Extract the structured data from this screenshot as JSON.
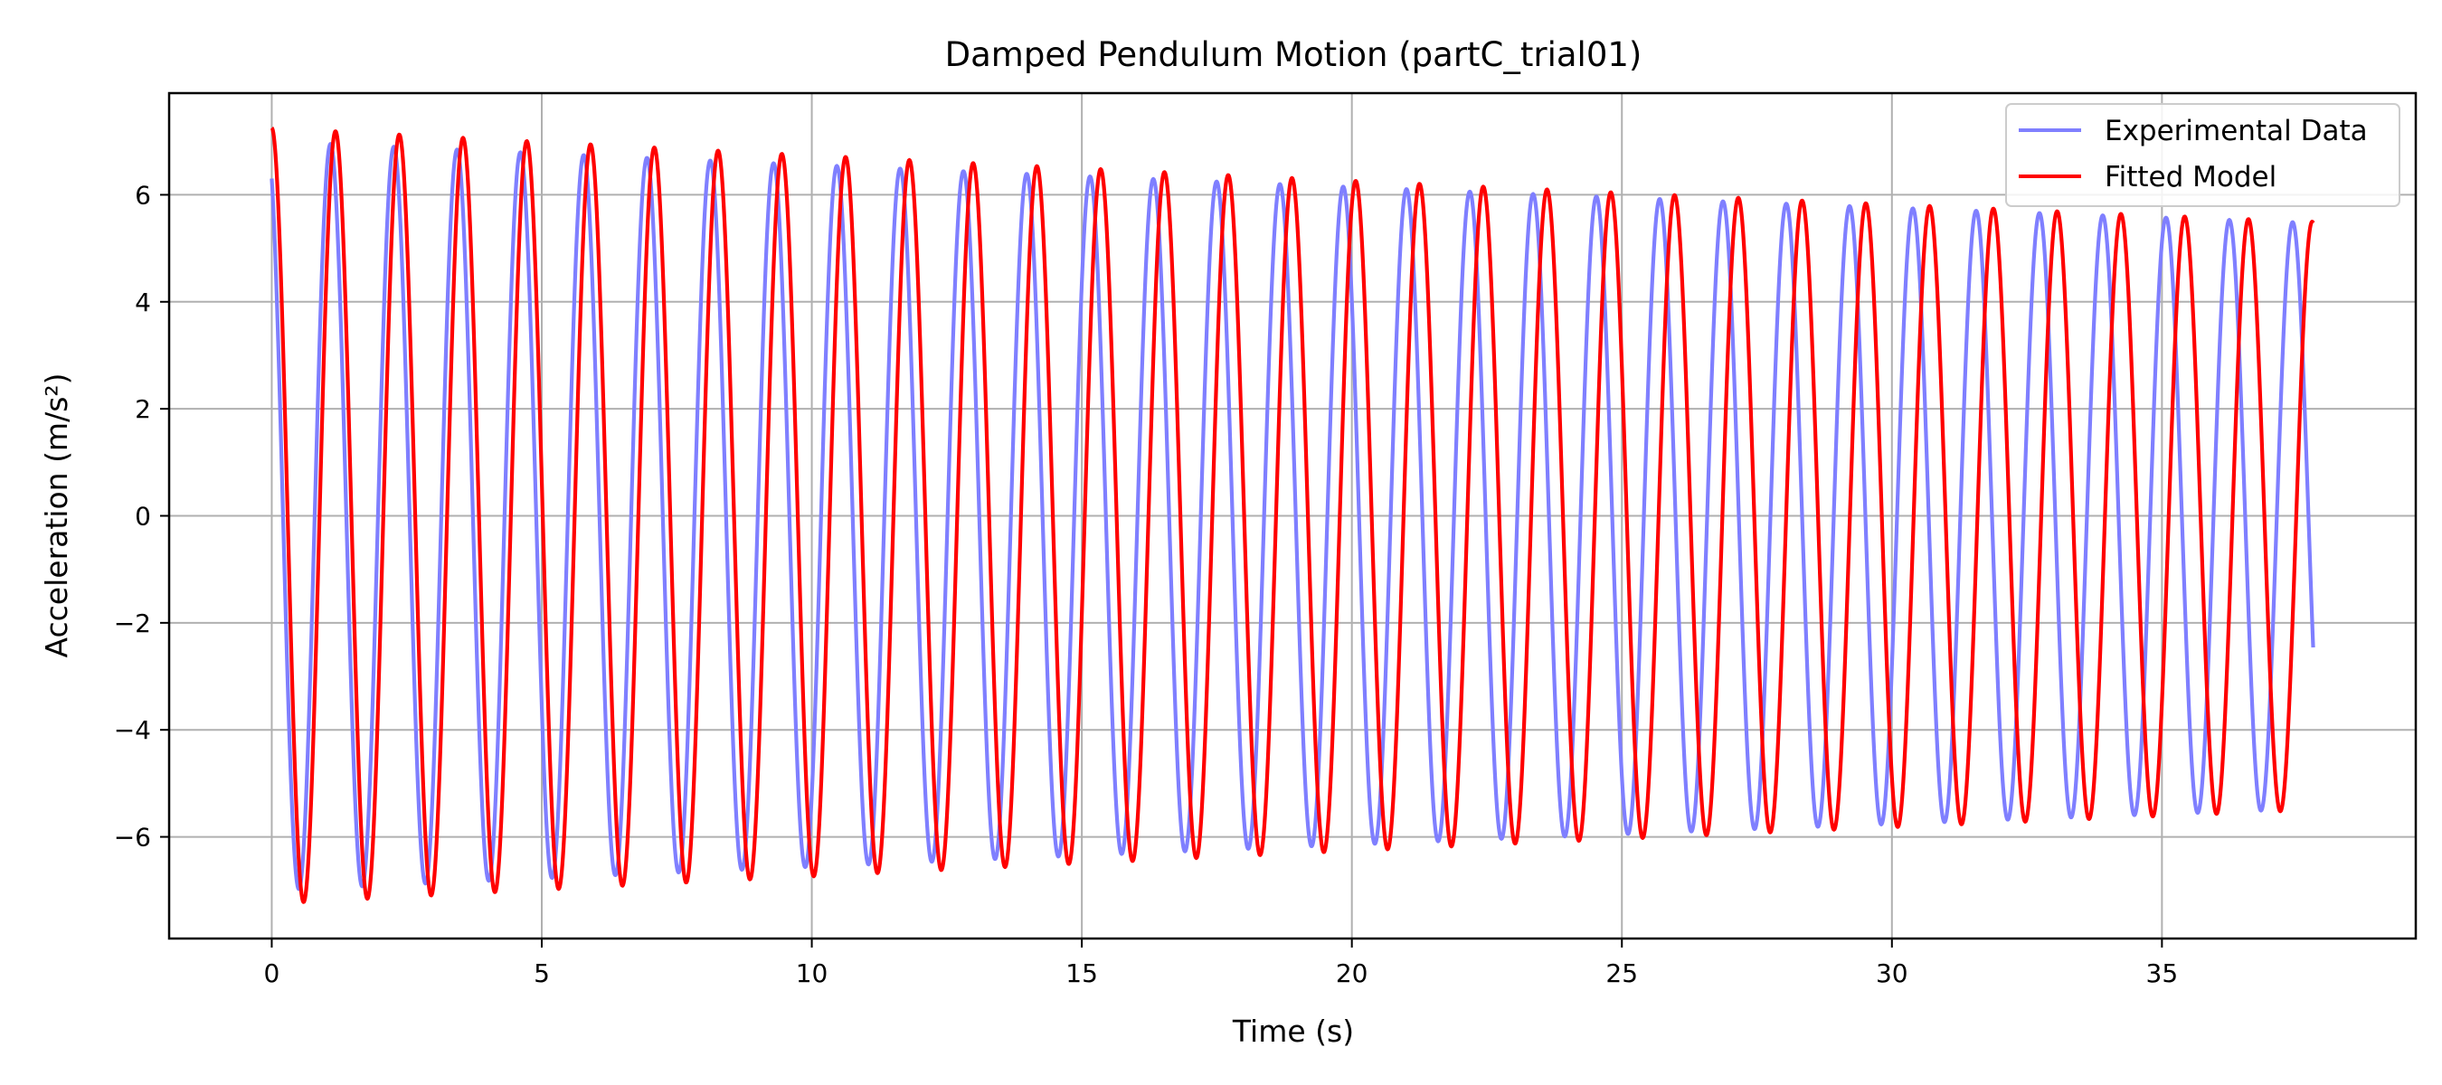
{
  "chart_data": {
    "type": "line",
    "title": "Damped Pendulum Motion (partC_trial01)",
    "xlabel": "Time (s)",
    "ylabel": "Acceleration (m/s²)",
    "xlim": [
      -1.9,
      39.7
    ],
    "ylim": [
      -7.9,
      7.9
    ],
    "xticks": [
      0,
      5,
      10,
      15,
      20,
      25,
      30,
      35
    ],
    "yticks": [
      -6,
      -4,
      -2,
      0,
      2,
      4,
      6
    ],
    "xtick_labels": [
      "0",
      "5",
      "10",
      "15",
      "20",
      "25",
      "30",
      "35"
    ],
    "ytick_labels": [
      "−6",
      "−4",
      "−2",
      "0",
      "2",
      "4",
      "6"
    ],
    "grid": true,
    "legend": "top-right",
    "x_range": [
      0,
      37.8
    ],
    "series": [
      {
        "name": "Experimental Data",
        "color": "#7f7fff",
        "amplitude0": 7.0,
        "decay_rate": 0.0065,
        "period_s": 1.172,
        "phase_rad": 0.45,
        "peaks": [
          [
            1.1,
            6.95
          ],
          [
            2.3,
            6.85
          ],
          [
            3.5,
            6.8
          ],
          [
            36.3,
            5.4
          ],
          [
            37.8,
            5.3
          ]
        ],
        "troughs": [
          [
            0.6,
            -7.25
          ],
          [
            1.8,
            -7.15
          ],
          [
            36.9,
            -5.45
          ]
        ]
      },
      {
        "name": "Fitted Model",
        "color": "#ff0000",
        "amplitude0": 7.25,
        "decay_rate": 0.00732,
        "period_s": 1.1807,
        "phase_rad": 0.0,
        "peaks": [
          [
            0.0,
            7.25
          ],
          [
            1.2,
            7.2
          ],
          [
            2.4,
            7.1
          ],
          [
            36.6,
            5.5
          ]
        ],
        "troughs": [
          [
            0.6,
            -7.2
          ],
          [
            1.8,
            -7.1
          ],
          [
            37.2,
            -5.5
          ]
        ]
      }
    ]
  }
}
